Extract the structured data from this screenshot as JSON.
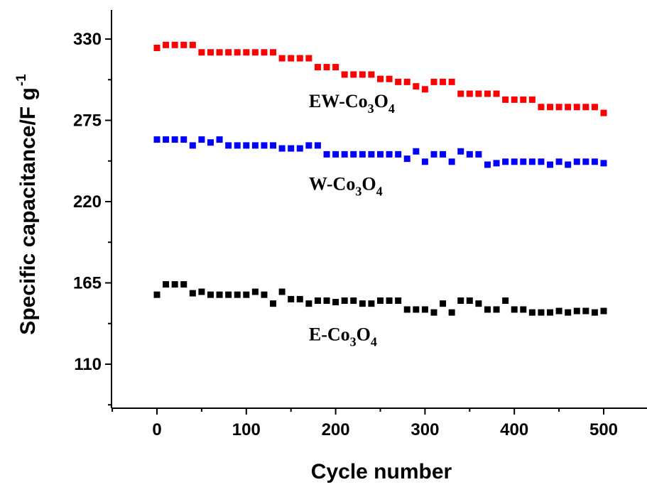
{
  "chart_data": {
    "type": "scatter",
    "xlabel": "Cycle number",
    "ylabel": "Specific capacitance/F g",
    "ylabel_superscript": "-1",
    "xlim": [
      -50,
      550
    ],
    "ylim": [
      80,
      350
    ],
    "xticks": [
      0,
      100,
      200,
      300,
      400,
      500
    ],
    "yticks": [
      110,
      165,
      220,
      275,
      330
    ],
    "grid": false,
    "series": [
      {
        "name": "EW-Co3O4",
        "color": "#ff0000",
        "marker": "square",
        "x": [
          0,
          10,
          20,
          30,
          40,
          50,
          60,
          70,
          80,
          90,
          100,
          110,
          120,
          130,
          140,
          150,
          160,
          170,
          180,
          190,
          200,
          210,
          220,
          230,
          240,
          250,
          260,
          270,
          280,
          290,
          300,
          310,
          320,
          330,
          340,
          350,
          360,
          370,
          380,
          390,
          400,
          410,
          420,
          430,
          440,
          450,
          460,
          470,
          480,
          490,
          500
        ],
        "y": [
          324,
          326,
          326,
          326,
          326,
          321,
          321,
          321,
          321,
          321,
          321,
          321,
          321,
          321,
          317,
          317,
          317,
          317,
          311,
          311,
          311,
          306,
          306,
          306,
          306,
          303,
          303,
          301,
          301,
          298,
          296,
          301,
          301,
          301,
          293,
          293,
          293,
          293,
          293,
          289,
          289,
          289,
          289,
          284,
          284,
          284,
          284,
          284,
          284,
          284,
          280
        ]
      },
      {
        "name": "W-Co3O4",
        "color": "#0000ff",
        "marker": "square",
        "x": [
          0,
          10,
          20,
          30,
          40,
          50,
          60,
          70,
          80,
          90,
          100,
          110,
          120,
          130,
          140,
          150,
          160,
          170,
          180,
          190,
          200,
          210,
          220,
          230,
          240,
          250,
          260,
          270,
          280,
          290,
          300,
          310,
          320,
          330,
          340,
          350,
          360,
          370,
          380,
          390,
          400,
          410,
          420,
          430,
          440,
          450,
          460,
          470,
          480,
          490,
          500
        ],
        "y": [
          262,
          262,
          262,
          262,
          258,
          262,
          260,
          262,
          258,
          258,
          258,
          258,
          258,
          258,
          256,
          256,
          256,
          258,
          258,
          252,
          252,
          252,
          252,
          252,
          252,
          252,
          252,
          252,
          249,
          254,
          247,
          252,
          252,
          247,
          254,
          252,
          252,
          245,
          246,
          247,
          247,
          247,
          247,
          247,
          245,
          247,
          245,
          247,
          247,
          247,
          246
        ]
      },
      {
        "name": "E-Co3O4",
        "color": "#000000",
        "marker": "square",
        "x": [
          0,
          10,
          20,
          30,
          40,
          50,
          60,
          70,
          80,
          90,
          100,
          110,
          120,
          130,
          140,
          150,
          160,
          170,
          180,
          190,
          200,
          210,
          220,
          230,
          240,
          250,
          260,
          270,
          280,
          290,
          300,
          310,
          320,
          330,
          340,
          350,
          360,
          370,
          380,
          390,
          400,
          410,
          420,
          430,
          440,
          450,
          460,
          470,
          480,
          490,
          500
        ],
        "y": [
          157,
          164,
          164,
          164,
          158,
          159,
          157,
          157,
          157,
          157,
          157,
          159,
          157,
          151,
          159,
          154,
          154,
          151,
          153,
          153,
          152,
          153,
          153,
          151,
          151,
          153,
          153,
          153,
          147,
          147,
          147,
          145,
          151,
          145,
          153,
          153,
          151,
          147,
          147,
          153,
          147,
          147,
          145,
          145,
          145,
          146,
          145,
          146,
          146,
          145,
          146
        ]
      }
    ],
    "annotations": [
      {
        "series": "EW-Co3O4",
        "base": "EW-Co",
        "sub1": "3",
        "mid": "O",
        "sub2": "4"
      },
      {
        "series": "W-Co3O4",
        "base": "W-Co",
        "sub1": "3",
        "mid": "O",
        "sub2": "4"
      },
      {
        "series": "E-Co3O4",
        "base": "E-Co",
        "sub1": "3",
        "mid": "O",
        "sub2": "4"
      }
    ]
  }
}
